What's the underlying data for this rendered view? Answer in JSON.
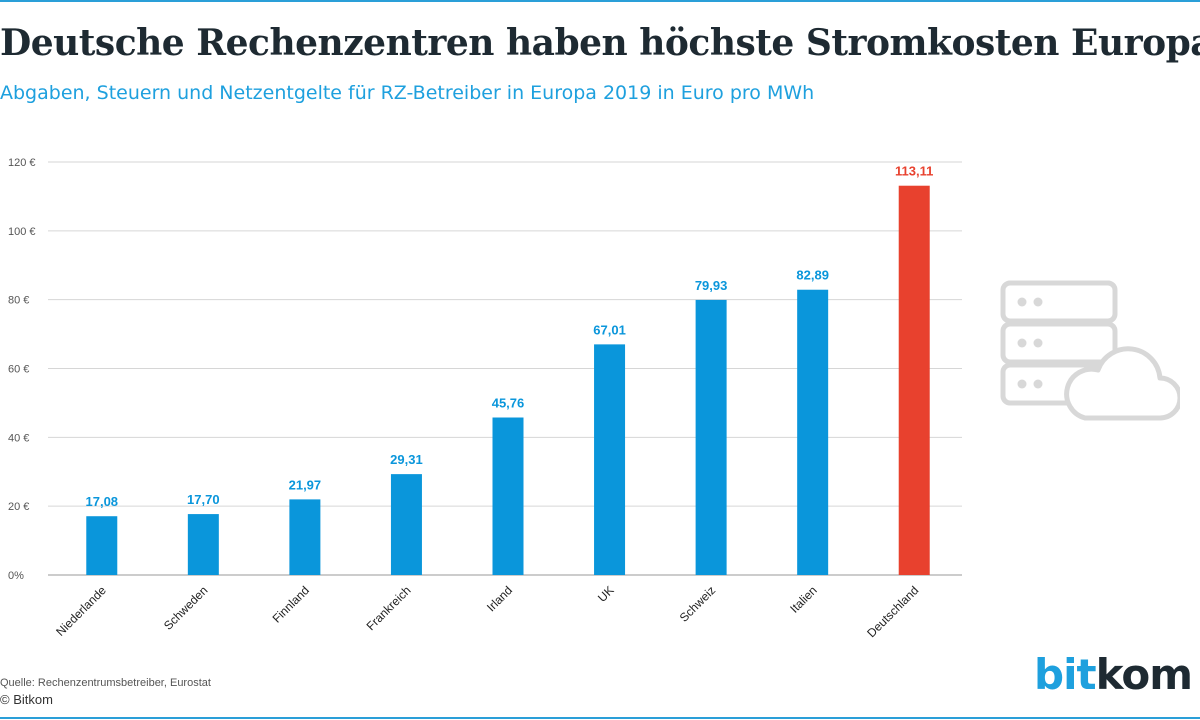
{
  "title": "Deutsche Rechenzentren haben höchste Stromkosten Europas",
  "subtitle": "Abgaben, Steuern und Netzentgelte für RZ-Betreiber in Europa 2019 in Euro pro MWh",
  "source": "Quelle: Rechenzentrumsbetreiber, Eurostat",
  "copyright": "© Bitkom",
  "logo": {
    "part1": "bit",
    "part2": "kom"
  },
  "colors": {
    "bar": "#0a96db",
    "highlight": "#e8412e",
    "grid": "#d6d6d6",
    "axis_text": "#555555"
  },
  "chart_data": {
    "type": "bar",
    "title": "Deutsche Rechenzentren haben höchste Stromkosten Europas",
    "subtitle": "Abgaben, Steuern und Netzentgelte für RZ-Betreiber in Europa 2019 in Euro pro MWh",
    "xlabel": "",
    "ylabel": "",
    "ylim": [
      0,
      120
    ],
    "yticks": [
      0,
      20,
      40,
      60,
      80,
      100,
      120
    ],
    "ytick_labels": [
      "0%",
      "20 €",
      "40 €",
      "60 €",
      "80 €",
      "100 €",
      "120 €"
    ],
    "grid": true,
    "categories": [
      "Niederlande",
      "Schweden",
      "Finnland",
      "Frankreich",
      "Irland",
      "UK",
      "Schweiz",
      "Italien",
      "Deutschland"
    ],
    "values": [
      17.08,
      17.7,
      21.97,
      29.31,
      45.76,
      67.01,
      79.93,
      82.89,
      113.11
    ],
    "value_labels": [
      "17,08",
      "17,70",
      "21,97",
      "29,31",
      "45,76",
      "67,01",
      "79,93",
      "82,89",
      "113,11"
    ],
    "highlight": "Deutschland"
  }
}
